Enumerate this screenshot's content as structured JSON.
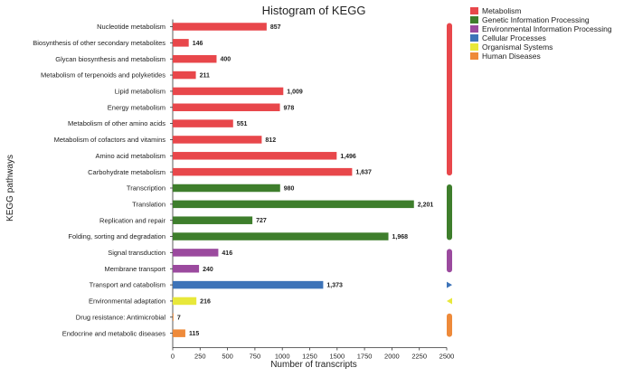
{
  "chart_data": {
    "type": "bar",
    "orientation": "horizontal",
    "title": "Histogram of KEGG",
    "xlabel": "Number of transcripts",
    "ylabel": "KEGG pathways",
    "xlim": [
      0,
      2500
    ],
    "xticks": [
      "0",
      "250",
      "500",
      "750",
      "1000",
      "1250",
      "1500",
      "1750",
      "2000",
      "2250",
      "2500"
    ],
    "categories": [
      "Nucleotide metabolism",
      "Biosynthesis of other secondary metabolites",
      "Glycan biosynthesis and metabolism",
      "Metabolism of terpenoids and polyketides",
      "Lipid metabolism",
      "Energy metabolism",
      "Metabolism of other amino acids",
      "Metabolism of cofactors and vitamins",
      "Amino acid metabolism",
      "Carbohydrate metabolism",
      "Transcription",
      "Translation",
      "Replication and repair",
      "Folding, sorting and degradation",
      "Signal transduction",
      "Membrane transport",
      "Transport and catabolism",
      "Environmental adaptation",
      "Drug resistance: Antimicrobial",
      "Endocrine and metabolic diseases"
    ],
    "values": [
      857,
      146,
      400,
      211,
      1009,
      978,
      551,
      812,
      1496,
      1637,
      980,
      2201,
      727,
      1968,
      416,
      240,
      1373,
      216,
      7,
      115
    ],
    "value_labels": [
      "857",
      "146",
      "400",
      "211",
      "1,009",
      "978",
      "551",
      "812",
      "1,496",
      "1,637",
      "980",
      "2,201",
      "727",
      "1,968",
      "416",
      "240",
      "1,373",
      "216",
      "7",
      "115"
    ],
    "groups": [
      0,
      0,
      0,
      0,
      0,
      0,
      0,
      0,
      0,
      0,
      1,
      1,
      1,
      1,
      2,
      2,
      3,
      4,
      5,
      5
    ],
    "legend": [
      {
        "name": "Metabolism",
        "color": "#e8474b"
      },
      {
        "name": "Genetic Information Processing",
        "color": "#3e7e2c"
      },
      {
        "name": "Environmental Information Processing",
        "color": "#9b4a9e"
      },
      {
        "name": "Cellular Processes",
        "color": "#3d73b8"
      },
      {
        "name": "Organismal Systems",
        "color": "#e8e83a"
      },
      {
        "name": "Human Diseases",
        "color": "#ee8a3a"
      }
    ],
    "legend_position": "top-right"
  }
}
